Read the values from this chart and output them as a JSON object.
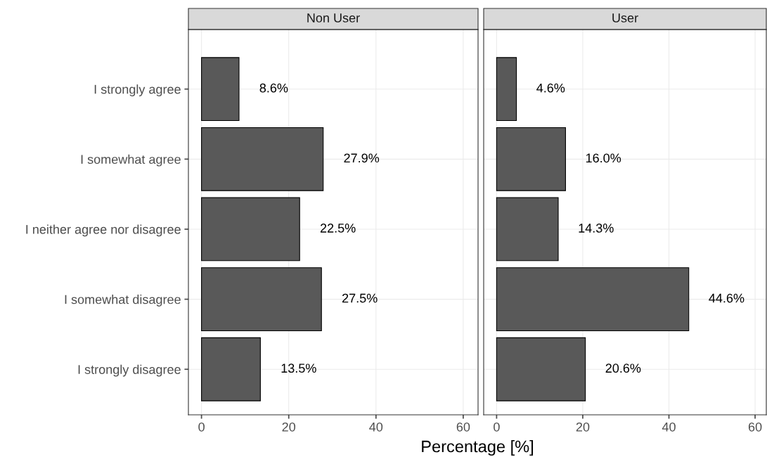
{
  "chart_data": [
    {
      "type": "bar",
      "orientation": "horizontal",
      "title": "Non User",
      "xlabel": "Percentage [%]",
      "categories": [
        "I strongly agree",
        "I somewhat agree",
        "I neither agree nor disagree",
        "I somewhat disagree",
        "I strongly disagree"
      ],
      "values": [
        8.6,
        27.9,
        22.5,
        27.5,
        13.5
      ],
      "value_labels": [
        "8.6%",
        "27.9%",
        "22.5%",
        "27.5%",
        "13.5%"
      ],
      "color": "#595959",
      "xlim": [
        -3,
        63.4
      ],
      "xticks": [
        0,
        20,
        40,
        60
      ],
      "grid": true
    },
    {
      "type": "bar",
      "orientation": "horizontal",
      "title": "User",
      "values": [
        4.6,
        16.0,
        14.3,
        44.6,
        20.6
      ],
      "value_labels": [
        "4.6%",
        "16.0%",
        "14.3%",
        "44.6%",
        "20.6%"
      ],
      "color": "#595959",
      "xlim": [
        -3,
        62.6
      ],
      "xticks": [
        0,
        20,
        40,
        60
      ],
      "grid": true,
      "tick_labels": "x"
    }
  ]
}
